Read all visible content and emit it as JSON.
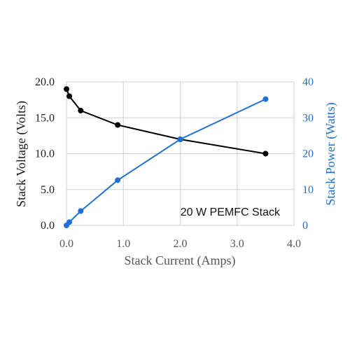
{
  "chart_data": {
    "type": "line",
    "xlabel": "Stack Current (Amps)",
    "ylabel": "Stack Voltage (Volts)",
    "y2label": "Stack Power (Watts)",
    "annotation": "20 W PEMFC Stack",
    "xlim": [
      0,
      4
    ],
    "ylim": [
      0,
      20
    ],
    "y2lim": [
      0,
      40
    ],
    "x_ticks": [
      "0.0",
      "1.0",
      "2.0",
      "3.0",
      "4.0"
    ],
    "y_ticks": [
      "0.0",
      "5.0",
      "10.0",
      "15.0",
      "20.0"
    ],
    "y2_ticks": [
      "0",
      "10",
      "20",
      "30",
      "40"
    ],
    "grid": true,
    "series": [
      {
        "axis": "left",
        "color": "#000000",
        "x": [
          0.0,
          0.05,
          0.25,
          0.9,
          2.0,
          3.5
        ],
        "values": [
          19.0,
          18.0,
          16.0,
          14.0,
          12.0,
          10.0
        ]
      },
      {
        "axis": "right",
        "color": "#1f6fd6",
        "x": [
          0.0,
          0.05,
          0.25,
          0.9,
          2.0,
          3.5
        ],
        "values": [
          0.0,
          0.9,
          4.0,
          12.6,
          24.0,
          35.2
        ]
      }
    ]
  }
}
